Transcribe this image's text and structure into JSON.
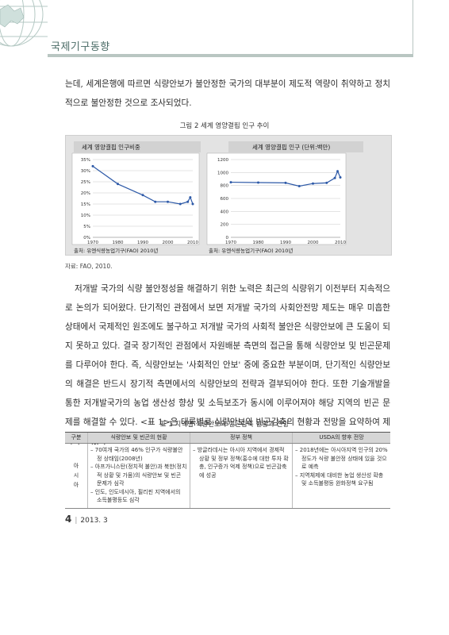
{
  "header": {
    "section": "국제기구동향"
  },
  "para1": "는데, 세계은행에 따르면 식량안보가 불안정한 국가의 대부분이 제도적 역량이 취약하고 정치적으로 불안정한 것으로 조사되었다.",
  "figure": {
    "caption": "그림 2  세계 영양결핍 인구 추이",
    "source": "자료: FAO, 2010."
  },
  "chart_data": [
    {
      "type": "line",
      "title": "세계 영양결핍 인구비중",
      "note": "출처: 유엔식량농업기구(FAO) 2010년",
      "x": [
        1970,
        1980,
        1990,
        1995,
        2000,
        2005,
        2008,
        2009,
        2010
      ],
      "values": [
        32,
        24,
        19,
        16,
        16,
        15,
        16,
        18,
        15
      ],
      "x_ticks": [
        "1970",
        "1980",
        "1990",
        "2000",
        "2010"
      ],
      "y_ticks": [
        "35%",
        "30%",
        "25%",
        "20%",
        "15%",
        "10%",
        "5%",
        "0%"
      ],
      "xlim": [
        1970,
        2010
      ],
      "ylim": [
        0,
        35
      ],
      "line_color": "#2e5aa8"
    },
    {
      "type": "line",
      "title": "세계 영양결핍 인구 (단위:백만)",
      "note": "출처: 유엔식량농업기구(FAO) 2010년",
      "x": [
        1970,
        1980,
        1990,
        1995,
        2000,
        2005,
        2008,
        2009,
        2010
      ],
      "values": [
        850,
        845,
        840,
        790,
        830,
        840,
        915,
        1020,
        925
      ],
      "x_ticks": [
        "1970",
        "1980",
        "1990",
        "2000",
        "2010"
      ],
      "y_ticks": [
        "1200",
        "1000",
        "800",
        "600",
        "400",
        "200",
        "0"
      ],
      "xlim": [
        1970,
        2010
      ],
      "ylim": [
        0,
        1200
      ],
      "line_color": "#2e5aa8"
    }
  ],
  "para2": "저개발 국가의 식량 불안정성을 해결하기 위한 노력은 최근의 식량위기 이전부터 지속적으로 논의가 되어왔다. 단기적인 관점에서 보면 저개발 국가의 사회안전망 제도는 매우 미흡한 상태에서 국제적인 원조에도 불구하고 저개발 국가의 사회적 불안은 식량안보에 큰 도움이 되지 못하고 있다. 결국 장기적인 관점에서 자원배분 측면의 접근을 통해 식량안보 및 빈곤문제를 다루어야 한다. 즉, 식량안보는 '사회적인 안보' 중에 중요한 부분이며, 단기적인 식량안보의 해결은 반드시 장기적 측면에서의 식량안보의 전략과 결부되어야 한다. 또한 기술개발을 통한 저개발국가의 농업 생산성 향상 및 소득보조가 동시에 이루어져야 해당 지역의 빈곤 문제를 해결할 수 있다. <표 1>은 대륙별로 식량안보와 빈곤감축의 현황과 전망을 요약하여 제시하고 있다.",
  "table": {
    "caption": "표 1  지역별 식량안보와 빈곤감축 현황과 전망",
    "headers": [
      "구분",
      "식량안보 및 빈곤의 현황",
      "정부 정책",
      "USDA의 향후 전망"
    ],
    "region": "아시아",
    "status": [
      "70여개 국가의 46% 인구가 식량불안정 상태임(2008년)",
      "아프가니스탄(정치적 불안)과 북한(정치적 상황 및 가뭄)의 식량안보 및 빈곤 문제가 심각",
      "인도, 인도네시아, 필리핀 지역에서의 소득불평등도 심각"
    ],
    "policy": [
      "방글라데시는 아시아 지역에서 경제적 상황 및 정부 정책(홍수에 대한 투자 확충, 인구증가 억제 정책)으로 빈곤감축에 성공"
    ],
    "outlook": [
      "2018년에는 아시아지역 인구의 20%정도가 식량 불안정 상태에 있을 것으로 예측",
      "지역체제에 대비한 농업 생산성 확충 및 소득불평등 완화정책 요구됨"
    ]
  },
  "footer": {
    "page": "4",
    "issue": "2013. 3"
  }
}
